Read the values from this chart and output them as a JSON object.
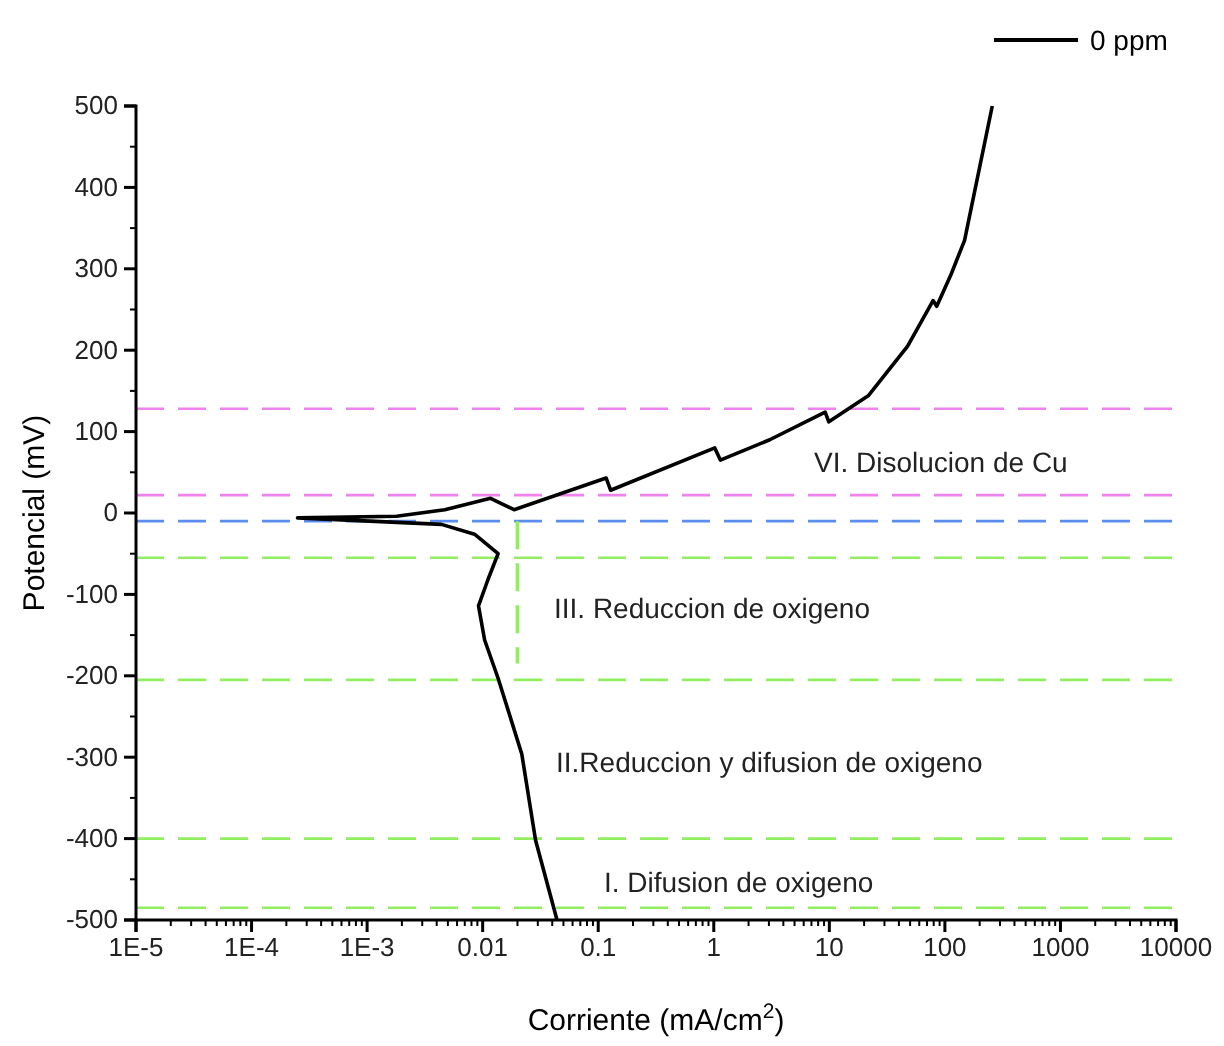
{
  "chart_data": {
    "type": "line",
    "xlabel": "Corriente (mA/cm$^{2}$)",
    "ylabel": "Potencial (mV)",
    "log": "x",
    "xlim": [
      1e-05,
      10000
    ],
    "ylim": [
      -500,
      500
    ],
    "xticks": [
      {
        "value": 1e-05,
        "label": "1E-5"
      },
      {
        "value": 0.0001,
        "label": "1E-4"
      },
      {
        "value": 0.001,
        "label": "1E-3"
      },
      0.01,
      0.1,
      1,
      10,
      100,
      1000,
      10000
    ],
    "yticks": [
      -500,
      -400,
      -300,
      -200,
      -100,
      0,
      100,
      200,
      300,
      400,
      500
    ],
    "legend": "top right",
    "grid": false,
    "series": [
      {
        "name": "0 ppm",
        "color": "#000000",
        "x": [
          0.044,
          0.0287,
          0.0218,
          0.0136,
          0.0104,
          0.0092,
          0.0111,
          0.0136,
          0.0085,
          0.0044,
          0.00025,
          0.0018,
          0.0047,
          0.0117,
          0.0187,
          0.117,
          0.128,
          1.02,
          1.14,
          3.05,
          9.2,
          9.9,
          21.7,
          47.6,
          79,
          85,
          113,
          148,
          257
        ],
        "values": [
          -500,
          -402,
          -296,
          -203,
          -156,
          -114,
          -82,
          -50,
          -26,
          -14,
          -6,
          -4,
          4,
          18,
          4,
          43,
          28,
          80,
          65,
          90,
          124,
          112,
          144,
          205,
          261,
          254,
          293,
          335,
          500
        ]
      },
      {
        "color": "#90ee60",
        "line_style": "dashed",
        "x": [
          0.02,
          0.02
        ],
        "values": [
          -10,
          -185
        ]
      }
    ],
    "ref_lines": [
      {
        "axis": "y",
        "value": 128,
        "color": "#ee82ee",
        "line_style": "dashed"
      },
      {
        "axis": "y",
        "value": 22,
        "color": "#ee82ee",
        "line_style": "dashed"
      },
      {
        "axis": "y",
        "value": -10,
        "color": "#5b8def",
        "line_style": "dashed"
      },
      {
        "axis": "y",
        "value": -55,
        "color": "#90ee60",
        "line_style": "dashed"
      },
      {
        "axis": "y",
        "value": -205,
        "color": "#90ee60",
        "line_style": "dashed"
      },
      {
        "axis": "y",
        "value": -400,
        "color": "#90ee60",
        "line_style": "dashed"
      },
      {
        "axis": "y",
        "value": -485,
        "color": "#90ee60",
        "line_style": "dashed"
      }
    ],
    "annotations": [
      "VI. Disolucion de Cu",
      "III. Reduccion de oxigeno",
      "II.Reduccion y difusion de oxigeno",
      "I. Difusion de oxigeno"
    ]
  }
}
